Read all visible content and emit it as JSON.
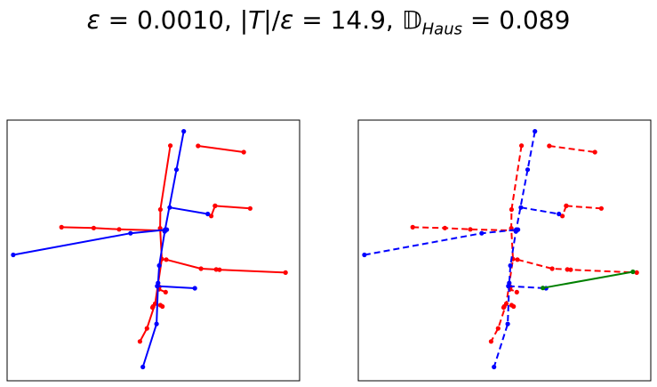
{
  "title": "ε = 0.0010, |T|/ε = 14.9, 𝔻Haus = 0.089",
  "colors": {
    "red": "#ff0000",
    "blue": "#0000ff",
    "green": "#008000",
    "frame": "#000000"
  },
  "chart_data": [
    {
      "type": "line",
      "panel": "left",
      "xlabel": "",
      "ylabel": "",
      "ticks": "none",
      "grid": false,
      "xlim": [
        0,
        100
      ],
      "ylim": [
        0,
        100
      ],
      "series": [
        {
          "color": "red",
          "style": "solid",
          "x": [
            55.8,
            52.4,
            52.3,
            52.9,
            50.6,
            47.8,
            45.4
          ],
          "y": [
            90.2,
            65.7,
            58.5,
            46.7,
            29.6,
            20.1,
            15.1
          ]
        },
        {
          "color": "red",
          "style": "solid",
          "x": [
            65.3,
            80.9
          ],
          "y": [
            90.1,
            87.7
          ]
        },
        {
          "color": "red",
          "style": "solid",
          "x": [
            71.1,
            69.8
          ],
          "y": [
            67.1,
            63.2
          ]
        },
        {
          "color": "red",
          "style": "solid",
          "x": [
            71.1,
            83.1
          ],
          "y": [
            67.1,
            66.1
          ]
        },
        {
          "color": "red",
          "style": "solid",
          "x": [
            18.6,
            29.6,
            38.3,
            53.9
          ],
          "y": [
            58.9,
            58.6,
            58.1,
            57.6
          ]
        },
        {
          "color": "red",
          "style": "solid",
          "x": [
            54.4,
            66.3,
            71.5,
            72.6,
            95.2
          ],
          "y": [
            46.5,
            43.0,
            42.7,
            42.6,
            41.5
          ]
        },
        {
          "color": "red",
          "style": "solid",
          "x": [
            52.0,
            51.9,
            54.2
          ],
          "y": [
            36.0,
            35.1,
            34.0
          ]
        },
        {
          "color": "red",
          "style": "solid",
          "x": [
            52.4,
            53.1
          ],
          "y": [
            29.0,
            28.5
          ]
        },
        {
          "color": "red",
          "style": "solid",
          "x": [
            49.7,
            49.9
          ],
          "y": [
            28.1,
            28.5
          ]
        },
        {
          "color": "blue",
          "style": "solid",
          "x": [
            60.4,
            57.9,
            54.0,
            53.9,
            52.0,
            51.6,
            51.1,
            46.4
          ],
          "y": [
            95.7,
            81.0,
            58.0,
            57.3,
            44.2,
            37.5,
            21.8,
            5.3
          ]
        },
        {
          "color": "blue",
          "style": "solid",
          "x": [
            2.1,
            42.2,
            54.6
          ],
          "y": [
            48.3,
            56.6,
            58.0
          ]
        },
        {
          "color": "blue",
          "style": "solid",
          "x": [
            55.6,
            68.6
          ],
          "y": [
            66.5,
            64.0
          ]
        },
        {
          "color": "blue",
          "style": "solid",
          "x": [
            51.3,
            64.2
          ],
          "y": [
            36.3,
            35.5
          ]
        }
      ]
    },
    {
      "type": "line",
      "panel": "right",
      "xlabel": "",
      "ylabel": "",
      "ticks": "none",
      "grid": false,
      "xlim": [
        0,
        100
      ],
      "ylim": [
        0,
        100
      ],
      "series": [
        {
          "color": "red",
          "style": "dashed",
          "x": [
            55.8,
            52.4,
            52.3,
            52.9,
            50.6,
            47.8,
            45.4
          ],
          "y": [
            90.2,
            65.7,
            58.5,
            46.7,
            29.6,
            20.1,
            15.1
          ]
        },
        {
          "color": "red",
          "style": "dashed",
          "x": [
            65.3,
            80.9
          ],
          "y": [
            90.1,
            87.7
          ]
        },
        {
          "color": "red",
          "style": "dashed",
          "x": [
            71.1,
            69.8
          ],
          "y": [
            67.1,
            63.2
          ]
        },
        {
          "color": "red",
          "style": "dashed",
          "x": [
            71.1,
            83.1
          ],
          "y": [
            67.1,
            66.1
          ]
        },
        {
          "color": "red",
          "style": "dashed",
          "x": [
            18.6,
            29.6,
            38.3,
            53.9
          ],
          "y": [
            58.9,
            58.6,
            58.1,
            57.6
          ]
        },
        {
          "color": "red",
          "style": "dashed",
          "x": [
            54.4,
            66.3,
            71.5,
            72.6,
            95.2
          ],
          "y": [
            46.5,
            43.0,
            42.7,
            42.6,
            41.5
          ]
        },
        {
          "color": "red",
          "style": "dashed",
          "x": [
            52.0,
            51.9,
            54.2
          ],
          "y": [
            36.0,
            35.1,
            34.0
          ]
        },
        {
          "color": "red",
          "style": "dashed",
          "x": [
            52.4,
            53.1
          ],
          "y": [
            29.0,
            28.5
          ]
        },
        {
          "color": "red",
          "style": "dashed",
          "x": [
            49.7,
            49.9
          ],
          "y": [
            28.1,
            28.5
          ]
        },
        {
          "color": "blue",
          "style": "dashed",
          "x": [
            60.4,
            57.9,
            54.0,
            53.9,
            52.0,
            51.6,
            51.1,
            46.4
          ],
          "y": [
            95.7,
            81.0,
            58.0,
            57.3,
            44.2,
            37.5,
            21.8,
            5.3
          ]
        },
        {
          "color": "blue",
          "style": "dashed",
          "x": [
            2.1,
            42.2,
            54.6
          ],
          "y": [
            48.3,
            56.6,
            58.0
          ]
        },
        {
          "color": "blue",
          "style": "dashed",
          "x": [
            55.6,
            68.6
          ],
          "y": [
            66.5,
            64.0
          ]
        },
        {
          "color": "blue",
          "style": "dashed",
          "x": [
            51.3,
            64.2
          ],
          "y": [
            36.3,
            35.5
          ]
        },
        {
          "color": "green",
          "style": "solid",
          "x": [
            63.1,
            93.9
          ],
          "y": [
            35.6,
            41.8
          ]
        }
      ]
    }
  ]
}
